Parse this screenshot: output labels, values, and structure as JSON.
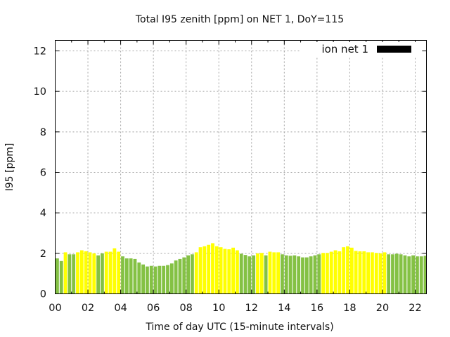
{
  "chart_data": {
    "type": "bar",
    "title": "Total I95 zenith [ppm] on NET 1, DoY=115",
    "xlabel": "Time of day UTC (15-minute intervals)",
    "ylabel": "I95 [ppm]",
    "xlim": [
      0,
      22.7
    ],
    "ylim": [
      0,
      12.5
    ],
    "grid": true,
    "legend": {
      "label": "ion net 1",
      "placement": "top-right",
      "swatch_color": "#000000"
    },
    "x_ticks": [
      "00",
      "02",
      "04",
      "06",
      "08",
      "10",
      "12",
      "14",
      "16",
      "18",
      "20",
      "22"
    ],
    "x_tick_values": [
      0,
      2,
      4,
      6,
      8,
      10,
      12,
      14,
      16,
      18,
      20,
      22
    ],
    "y_ticks": [
      "0",
      "2",
      "4",
      "6",
      "8",
      "10",
      "12"
    ],
    "y_tick_values": [
      0,
      2,
      4,
      6,
      8,
      10,
      12
    ],
    "interval_hours": 0.25,
    "colors": {
      "G": "#84c144",
      "Y": "#ffff00"
    },
    "values": [
      1.75,
      1.62,
      2.05,
      1.95,
      1.95,
      2.05,
      2.15,
      2.1,
      2.05,
      2.0,
      1.9,
      2.0,
      2.08,
      2.08,
      2.25,
      2.08,
      1.85,
      1.75,
      1.75,
      1.72,
      1.55,
      1.45,
      1.35,
      1.38,
      1.35,
      1.38,
      1.38,
      1.42,
      1.5,
      1.65,
      1.72,
      1.8,
      1.9,
      1.95,
      2.05,
      2.3,
      2.35,
      2.42,
      2.5,
      2.35,
      2.3,
      2.22,
      2.2,
      2.28,
      2.15,
      1.98,
      1.92,
      1.85,
      1.9,
      2.0,
      2.02,
      1.9,
      2.08,
      2.05,
      2.05,
      1.95,
      1.9,
      1.88,
      1.9,
      1.85,
      1.8,
      1.8,
      1.85,
      1.9,
      1.95,
      2.02,
      2.02,
      2.08,
      2.15,
      2.1,
      2.3,
      2.35,
      2.28,
      2.12,
      2.1,
      2.1,
      2.05,
      2.05,
      2.02,
      2.0,
      2.05,
      1.95,
      1.95,
      1.98,
      1.95,
      1.9,
      1.85,
      1.9,
      1.85,
      1.85,
      1.88
    ],
    "bar_colors": [
      "G",
      "G",
      "Y",
      "G",
      "G",
      "Y",
      "Y",
      "Y",
      "Y",
      "Y",
      "G",
      "G",
      "Y",
      "Y",
      "Y",
      "Y",
      "G",
      "G",
      "G",
      "G",
      "G",
      "G",
      "G",
      "G",
      "G",
      "G",
      "G",
      "G",
      "G",
      "G",
      "G",
      "G",
      "G",
      "G",
      "Y",
      "Y",
      "Y",
      "Y",
      "Y",
      "Y",
      "Y",
      "Y",
      "Y",
      "Y",
      "Y",
      "G",
      "G",
      "G",
      "G",
      "Y",
      "Y",
      "G",
      "Y",
      "Y",
      "Y",
      "G",
      "G",
      "G",
      "G",
      "G",
      "G",
      "G",
      "G",
      "G",
      "G",
      "Y",
      "Y",
      "Y",
      "Y",
      "Y",
      "Y",
      "Y",
      "Y",
      "Y",
      "Y",
      "Y",
      "Y",
      "Y",
      "Y",
      "Y",
      "Y",
      "G",
      "G",
      "G",
      "G",
      "G",
      "G",
      "G",
      "G",
      "G",
      "G"
    ]
  }
}
